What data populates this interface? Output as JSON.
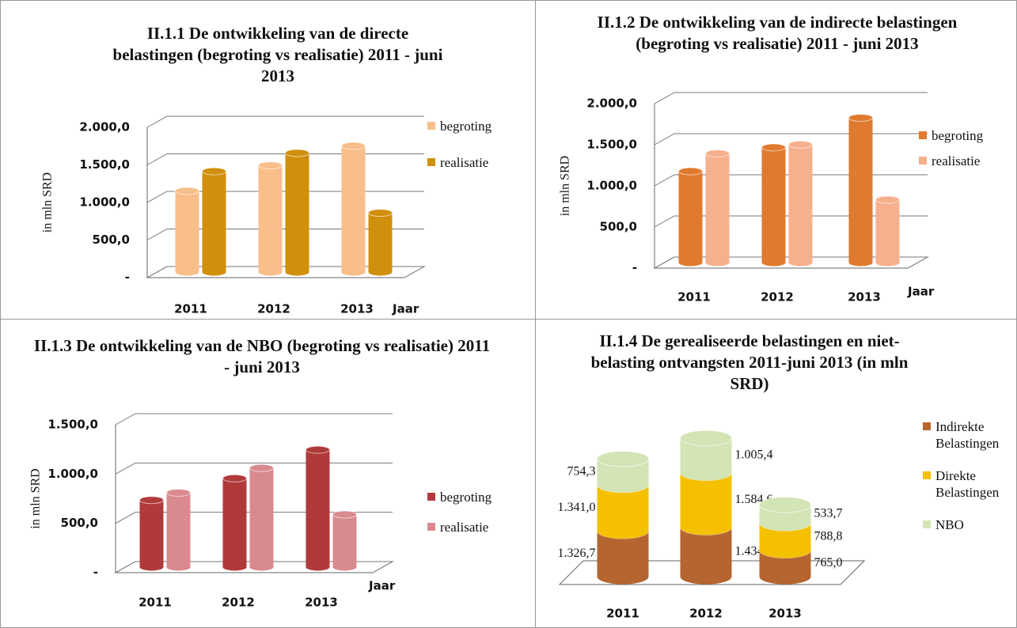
{
  "chart_data": [
    {
      "type": "bar",
      "title": "II.1.1 De ontwikkeling van de directe belastingen (begroting vs realisatie) 2011 - juni 2013",
      "y_label": "in mln SRD",
      "x_label": "Jaar",
      "categories": [
        "2011",
        "2012",
        "2013"
      ],
      "series": [
        {
          "name": "begroting",
          "color": "#f8bf8a",
          "values": [
            1080,
            1420,
            1680
          ]
        },
        {
          "name": "realisatie",
          "color": "#d08f0c",
          "values": [
            1341.0,
            1584.6,
            788.8
          ]
        }
      ],
      "ylim": [
        0,
        2000
      ],
      "yticks": [
        {
          "value": 0,
          "label": "-"
        },
        {
          "value": 500,
          "label": "500,0"
        },
        {
          "value": 1000,
          "label": "1.000,0"
        },
        {
          "value": 1500,
          "label": "1.500,0"
        },
        {
          "value": 2000,
          "label": "2.000,0"
        }
      ]
    },
    {
      "type": "bar",
      "title": "II.1.2 De ontwikkeling van de indirecte belastingen (begroting vs realisatie) 2011 - juni 2013",
      "y_label": "in mln SRD",
      "x_label": "Jaar",
      "categories": [
        "2011",
        "2012",
        "2013"
      ],
      "series": [
        {
          "name": "begroting",
          "color": "#e07a2e",
          "values": [
            1110,
            1400,
            1760
          ]
        },
        {
          "name": "realisatie",
          "color": "#f6b08e",
          "values": [
            1326.7,
            1434.5,
            765.0
          ]
        }
      ],
      "ylim": [
        0,
        2000
      ],
      "yticks": [
        {
          "value": 0,
          "label": "-"
        },
        {
          "value": 500,
          "label": "500,0"
        },
        {
          "value": 1000,
          "label": "1.000,0"
        },
        {
          "value": 1500,
          "label": "1.500,0"
        },
        {
          "value": 2000,
          "label": "2.000,0"
        }
      ]
    },
    {
      "type": "bar",
      "title": "II.1.3 De ontwikkeling van de NBO (begroting vs realisatie) 2011 - juni 2013",
      "y_label": "in mln SRD",
      "x_label": "Jaar",
      "categories": [
        "2011",
        "2012",
        "2013"
      ],
      "series": [
        {
          "name": "begroting",
          "color": "#b03a3a",
          "values": [
            680,
            900,
            1190
          ]
        },
        {
          "name": "realisatie",
          "color": "#d98a8f",
          "values": [
            754.3,
            1005.4,
            533.7
          ]
        }
      ],
      "ylim": [
        0,
        1500
      ],
      "yticks": [
        {
          "value": 0,
          "label": "-"
        },
        {
          "value": 500,
          "label": "500,0"
        },
        {
          "value": 1000,
          "label": "1.000,0"
        },
        {
          "value": 1500,
          "label": "1.500,0"
        }
      ]
    },
    {
      "type": "stacked_bar",
      "title": "II.1.4 De gerealiseerde belastingen en niet-belasting ontvangsten 2011-juni 2013 (in mln SRD)",
      "categories": [
        "2011",
        "2012",
        "2013"
      ],
      "series": [
        {
          "name": "Indirekte Belastingen",
          "color": "#b5652f",
          "values": [
            1326.7,
            1434.5,
            765.0
          ],
          "value_labels": [
            "1.326,7",
            "1.434,5",
            "765,0"
          ]
        },
        {
          "name": "Direkte Belastingen",
          "color": "#f5c000",
          "values": [
            1341.0,
            1584.6,
            788.8
          ],
          "value_labels": [
            "1.341,0",
            "1.584,6",
            "788,8"
          ]
        },
        {
          "name": "NBO",
          "color": "#d3e4b5",
          "values": [
            754.3,
            1005.4,
            533.7
          ],
          "value_labels": [
            "754,3",
            "1.005,4",
            "533,7"
          ]
        }
      ]
    }
  ]
}
